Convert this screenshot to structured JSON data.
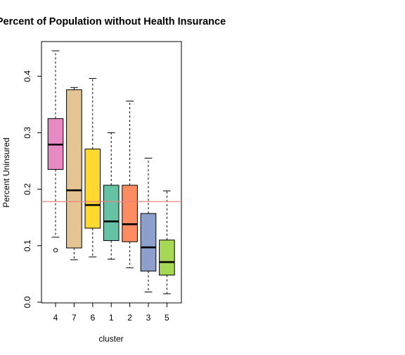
{
  "chart_data": {
    "type": "box",
    "title": "Percent of Population without Health Insurance",
    "xlabel": "cluster",
    "ylabel": "Percent Uninsured",
    "categories": [
      "4",
      "7",
      "6",
      "1",
      "2",
      "3",
      "5"
    ],
    "ylim": [
      0.0,
      0.45
    ],
    "yticks": [
      0.0,
      0.1,
      0.2,
      0.3,
      0.4
    ],
    "ytick_labels": [
      "0.0",
      "0.1",
      "0.2",
      "0.3",
      "0.4"
    ],
    "reference_line": {
      "y": 0.178,
      "color": "#f08080"
    },
    "grid": false,
    "legend": "none",
    "boxes": [
      {
        "cluster": "4",
        "min": 0.115,
        "q1": 0.235,
        "median": 0.279,
        "q3": 0.325,
        "max": 0.445,
        "outliers": [
          0.092
        ],
        "color": "#e78ac3"
      },
      {
        "cluster": "7",
        "min": 0.075,
        "q1": 0.096,
        "median": 0.198,
        "q3": 0.376,
        "max": 0.38,
        "outliers": [],
        "color": "#e5c494"
      },
      {
        "cluster": "6",
        "min": 0.08,
        "q1": 0.131,
        "median": 0.172,
        "q3": 0.271,
        "max": 0.396,
        "outliers": [],
        "color": "#ffd92f"
      },
      {
        "cluster": "1",
        "min": 0.076,
        "q1": 0.109,
        "median": 0.143,
        "q3": 0.207,
        "max": 0.3,
        "outliers": [],
        "color": "#66c2a5"
      },
      {
        "cluster": "2",
        "min": 0.061,
        "q1": 0.107,
        "median": 0.138,
        "q3": 0.207,
        "max": 0.356,
        "outliers": [],
        "color": "#fc8d62"
      },
      {
        "cluster": "3",
        "min": 0.018,
        "q1": 0.055,
        "median": 0.097,
        "q3": 0.157,
        "max": 0.255,
        "outliers": [],
        "color": "#8da0cb"
      },
      {
        "cluster": "5",
        "min": 0.015,
        "q1": 0.048,
        "median": 0.071,
        "q3": 0.11,
        "max": 0.197,
        "outliers": [],
        "color": "#a6d854"
      }
    ]
  }
}
